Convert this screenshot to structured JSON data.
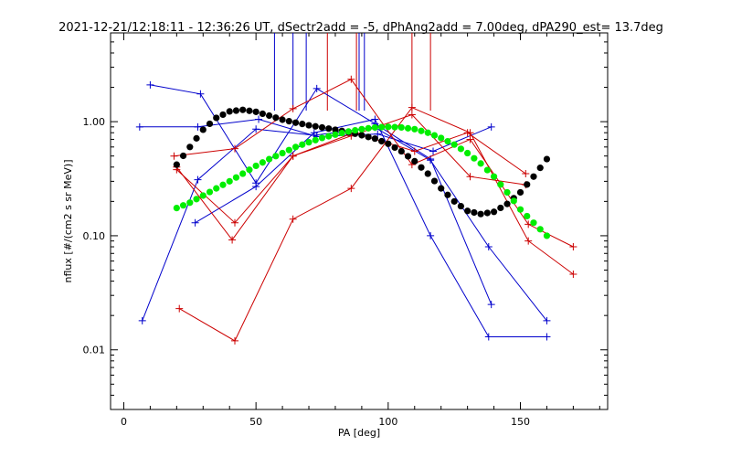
{
  "chart_data": {
    "type": "line",
    "title": "2021-12-21/12:18:11 - 12:36:26 UT, dSectr2add = -5, dPhAng2add = 7.00deg, dPA290_est=  13.7deg",
    "xlabel": "PA [deg]",
    "ylabel": "nflux [#/(cm2 s sr MeV)]",
    "x_scale": "linear",
    "y_scale": "log",
    "xlim": [
      -5,
      183
    ],
    "ylim": [
      0.003,
      6.0
    ],
    "x_ticks": [
      {
        "value": 0,
        "label": "0"
      },
      {
        "value": 50,
        "label": "50"
      },
      {
        "value": 100,
        "label": "100"
      },
      {
        "value": 150,
        "label": "150"
      }
    ],
    "y_ticks": [
      {
        "value": 0.01,
        "label": "0.01"
      },
      {
        "value": 0.1,
        "label": "0.10"
      },
      {
        "value": 1.0,
        "label": "1.00"
      }
    ],
    "grid": false,
    "colors": {
      "blue": "#0000cc",
      "red": "#cc0000",
      "black": "#000000",
      "green": "#00ee00"
    },
    "series": [
      {
        "color": "blue",
        "marker": "plus",
        "x": [
          7,
          28,
          50,
          72,
          95,
          116,
          138,
          160
        ],
        "y": [
          0.018,
          0.31,
          0.86,
          0.76,
          0.89,
          0.46,
          0.08,
          0.018
        ]
      },
      {
        "color": "blue",
        "marker": "plus",
        "x": [
          10,
          29,
          50,
          73,
          95,
          116,
          139
        ],
        "y": [
          2.1,
          1.75,
          0.29,
          1.95,
          0.96,
          0.47,
          0.025
        ]
      },
      {
        "color": "blue",
        "marker": "plus",
        "x": [
          6,
          28,
          51,
          73,
          96,
          117,
          139
        ],
        "y": [
          0.9,
          0.9,
          1.05,
          0.74,
          0.78,
          0.55,
          0.9
        ]
      },
      {
        "color": "blue",
        "marker": "plus",
        "x": [
          27,
          50,
          72,
          95,
          116,
          138,
          160
        ],
        "y": [
          0.13,
          0.27,
          0.8,
          1.05,
          0.1,
          0.013,
          0.013
        ]
      },
      {
        "color": "red",
        "marker": "plus",
        "x": [
          21,
          42,
          64,
          86,
          109,
          131,
          153,
          170
        ],
        "y": [
          0.023,
          0.012,
          0.14,
          0.26,
          1.33,
          0.8,
          0.09,
          0.046
        ]
      },
      {
        "color": "red",
        "marker": "plus",
        "x": [
          19,
          42,
          64,
          86,
          109,
          131,
          153,
          170
        ],
        "y": [
          0.5,
          0.58,
          1.3,
          2.35,
          0.42,
          0.7,
          0.126,
          0.08
        ]
      },
      {
        "color": "red",
        "marker": "plus",
        "x": [
          20,
          42,
          64,
          86,
          109,
          131,
          152
        ],
        "y": [
          0.38,
          0.13,
          0.5,
          0.75,
          1.15,
          0.33,
          0.28
        ]
      },
      {
        "color": "red",
        "marker": "plus",
        "x": [
          20,
          41,
          64,
          87,
          110,
          130,
          152
        ],
        "y": [
          0.4,
          0.092,
          0.5,
          0.8,
          0.55,
          0.8,
          0.35
        ]
      },
      {
        "color": "black",
        "marker": "dot",
        "x": [
          20,
          25,
          30,
          35,
          40,
          45,
          50,
          55,
          60,
          65,
          70,
          75,
          80,
          85,
          90,
          95,
          100,
          105,
          110,
          115,
          120,
          125,
          130,
          135,
          140,
          145,
          150,
          155,
          160
        ],
        "y": [
          0.42,
          0.6,
          0.85,
          1.08,
          1.23,
          1.27,
          1.22,
          1.13,
          1.04,
          0.98,
          0.93,
          0.89,
          0.85,
          0.81,
          0.76,
          0.71,
          0.64,
          0.55,
          0.45,
          0.35,
          0.26,
          0.2,
          0.165,
          0.155,
          0.162,
          0.19,
          0.24,
          0.33,
          0.47
        ]
      },
      {
        "color": "green",
        "marker": "dot",
        "x": [
          20,
          25,
          30,
          35,
          40,
          45,
          50,
          55,
          60,
          65,
          70,
          75,
          80,
          85,
          90,
          95,
          100,
          105,
          110,
          115,
          120,
          125,
          130,
          135,
          140,
          145,
          150,
          155,
          160
        ],
        "y": [
          0.175,
          0.195,
          0.225,
          0.26,
          0.3,
          0.35,
          0.41,
          0.47,
          0.53,
          0.6,
          0.66,
          0.72,
          0.77,
          0.82,
          0.86,
          0.89,
          0.9,
          0.89,
          0.86,
          0.8,
          0.72,
          0.63,
          0.53,
          0.43,
          0.33,
          0.24,
          0.17,
          0.13,
          0.1
        ]
      }
    ],
    "spikes": [
      {
        "color": "blue",
        "x": 57
      },
      {
        "color": "blue",
        "x": 64
      },
      {
        "color": "blue",
        "x": 69
      },
      {
        "color": "blue",
        "x": 89
      },
      {
        "color": "blue",
        "x": 91
      },
      {
        "color": "red",
        "x": 77
      },
      {
        "color": "red",
        "x": 88
      },
      {
        "color": "red",
        "x": 109
      },
      {
        "color": "red",
        "x": 116
      }
    ]
  }
}
